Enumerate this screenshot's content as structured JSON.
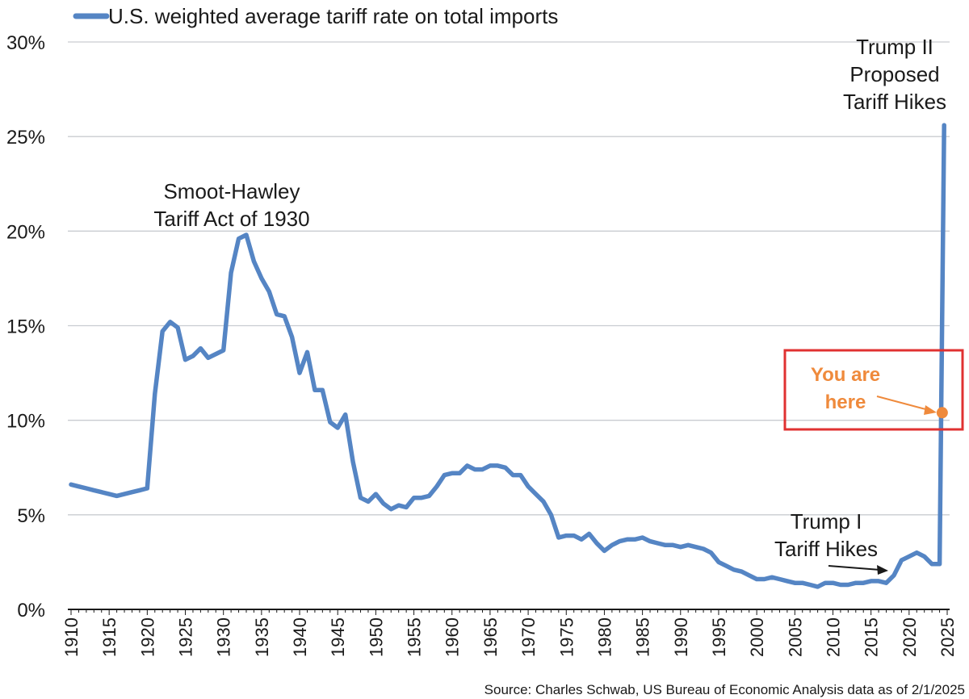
{
  "chart_data": {
    "type": "line",
    "title": "",
    "xlabel": "",
    "ylabel": "",
    "xlim": [
      1910,
      2025
    ],
    "ylim": [
      0,
      30
    ],
    "y_ticks": [
      {
        "value": 0,
        "label": "0%"
      },
      {
        "value": 5,
        "label": "5%"
      },
      {
        "value": 10,
        "label": "10%"
      },
      {
        "value": 15,
        "label": "15%"
      },
      {
        "value": 20,
        "label": "20%"
      },
      {
        "value": 25,
        "label": "25%"
      },
      {
        "value": 30,
        "label": "30%"
      }
    ],
    "x_ticks": [
      "1910",
      "1915",
      "1920",
      "1925",
      "1930",
      "1935",
      "1940",
      "1945",
      "1950",
      "1955",
      "1960",
      "1965",
      "1970",
      "1975",
      "1980",
      "1985",
      "1990",
      "1995",
      "2000",
      "2005",
      "2010",
      "2015",
      "2020",
      "2025"
    ],
    "legend": {
      "position": "top-left",
      "label": "U.S. weighted average tariff rate on total imports"
    },
    "series": [
      {
        "name": "U.S. weighted average tariff rate on total imports",
        "color": "#5585c4",
        "points": [
          [
            1910,
            6.6
          ],
          [
            1911,
            6.5
          ],
          [
            1912,
            6.4
          ],
          [
            1913,
            6.3
          ],
          [
            1914,
            6.2
          ],
          [
            1915,
            6.1
          ],
          [
            1916,
            6.0
          ],
          [
            1917,
            6.1
          ],
          [
            1918,
            6.2
          ],
          [
            1919,
            6.3
          ],
          [
            1920,
            6.4
          ],
          [
            1921,
            11.4
          ],
          [
            1922,
            14.7
          ],
          [
            1923,
            15.2
          ],
          [
            1924,
            14.9
          ],
          [
            1925,
            13.2
          ],
          [
            1926,
            13.4
          ],
          [
            1927,
            13.8
          ],
          [
            1928,
            13.3
          ],
          [
            1929,
            13.5
          ],
          [
            1930,
            13.7
          ],
          [
            1931,
            17.8
          ],
          [
            1932,
            19.6
          ],
          [
            1933,
            19.8
          ],
          [
            1934,
            18.4
          ],
          [
            1935,
            17.5
          ],
          [
            1936,
            16.8
          ],
          [
            1937,
            15.6
          ],
          [
            1938,
            15.5
          ],
          [
            1939,
            14.4
          ],
          [
            1940,
            12.5
          ],
          [
            1941,
            13.6
          ],
          [
            1942,
            11.6
          ],
          [
            1943,
            11.6
          ],
          [
            1944,
            9.9
          ],
          [
            1945,
            9.6
          ],
          [
            1946,
            10.3
          ],
          [
            1947,
            7.8
          ],
          [
            1948,
            5.9
          ],
          [
            1949,
            5.7
          ],
          [
            1950,
            6.1
          ],
          [
            1951,
            5.6
          ],
          [
            1952,
            5.3
          ],
          [
            1953,
            5.5
          ],
          [
            1954,
            5.4
          ],
          [
            1955,
            5.9
          ],
          [
            1956,
            5.9
          ],
          [
            1957,
            6.0
          ],
          [
            1958,
            6.5
          ],
          [
            1959,
            7.1
          ],
          [
            1960,
            7.2
          ],
          [
            1961,
            7.2
          ],
          [
            1962,
            7.6
          ],
          [
            1963,
            7.4
          ],
          [
            1964,
            7.4
          ],
          [
            1965,
            7.6
          ],
          [
            1966,
            7.6
          ],
          [
            1967,
            7.5
          ],
          [
            1968,
            7.1
          ],
          [
            1969,
            7.1
          ],
          [
            1970,
            6.5
          ],
          [
            1971,
            6.1
          ],
          [
            1972,
            5.7
          ],
          [
            1973,
            5.0
          ],
          [
            1974,
            3.8
          ],
          [
            1975,
            3.9
          ],
          [
            1976,
            3.9
          ],
          [
            1977,
            3.7
          ],
          [
            1978,
            4.0
          ],
          [
            1979,
            3.5
          ],
          [
            1980,
            3.1
          ],
          [
            1981,
            3.4
          ],
          [
            1982,
            3.6
          ],
          [
            1983,
            3.7
          ],
          [
            1984,
            3.7
          ],
          [
            1985,
            3.8
          ],
          [
            1986,
            3.6
          ],
          [
            1987,
            3.5
          ],
          [
            1988,
            3.4
          ],
          [
            1989,
            3.4
          ],
          [
            1990,
            3.3
          ],
          [
            1991,
            3.4
          ],
          [
            1992,
            3.3
          ],
          [
            1993,
            3.2
          ],
          [
            1994,
            3.0
          ],
          [
            1995,
            2.5
          ],
          [
            1996,
            2.3
          ],
          [
            1997,
            2.1
          ],
          [
            1998,
            2.0
          ],
          [
            1999,
            1.8
          ],
          [
            2000,
            1.6
          ],
          [
            2001,
            1.6
          ],
          [
            2002,
            1.7
          ],
          [
            2003,
            1.6
          ],
          [
            2004,
            1.5
          ],
          [
            2005,
            1.4
          ],
          [
            2006,
            1.4
          ],
          [
            2007,
            1.3
          ],
          [
            2008,
            1.2
          ],
          [
            2009,
            1.4
          ],
          [
            2010,
            1.4
          ],
          [
            2011,
            1.3
          ],
          [
            2012,
            1.3
          ],
          [
            2013,
            1.4
          ],
          [
            2014,
            1.4
          ],
          [
            2015,
            1.5
          ],
          [
            2016,
            1.5
          ],
          [
            2017,
            1.4
          ],
          [
            2018,
            1.8
          ],
          [
            2019,
            2.6
          ],
          [
            2020,
            2.8
          ],
          [
            2021,
            3.0
          ],
          [
            2022,
            2.8
          ],
          [
            2023,
            2.4
          ],
          [
            2024,
            2.4
          ],
          [
            2024.6,
            25.6
          ]
        ]
      }
    ],
    "annotations": [
      {
        "id": "smoot",
        "lines": [
          "Smoot-Hawley",
          "Tariff Act of 1930"
        ]
      },
      {
        "id": "trump2",
        "lines": [
          "Trump II",
          "Proposed",
          "Tariff Hikes"
        ]
      },
      {
        "id": "trump1",
        "lines": [
          "Trump I",
          "Tariff Hikes"
        ]
      },
      {
        "id": "you",
        "lines": [
          "You are",
          "here"
        ],
        "color": "#ef8a3c",
        "marker": {
          "x": 2024.35,
          "y": 10.4
        }
      }
    ],
    "highlight_box_color": "#e03131",
    "source": "Source: Charles Schwab, US Bureau of Economic Analysis data as of 2/1/2025"
  }
}
